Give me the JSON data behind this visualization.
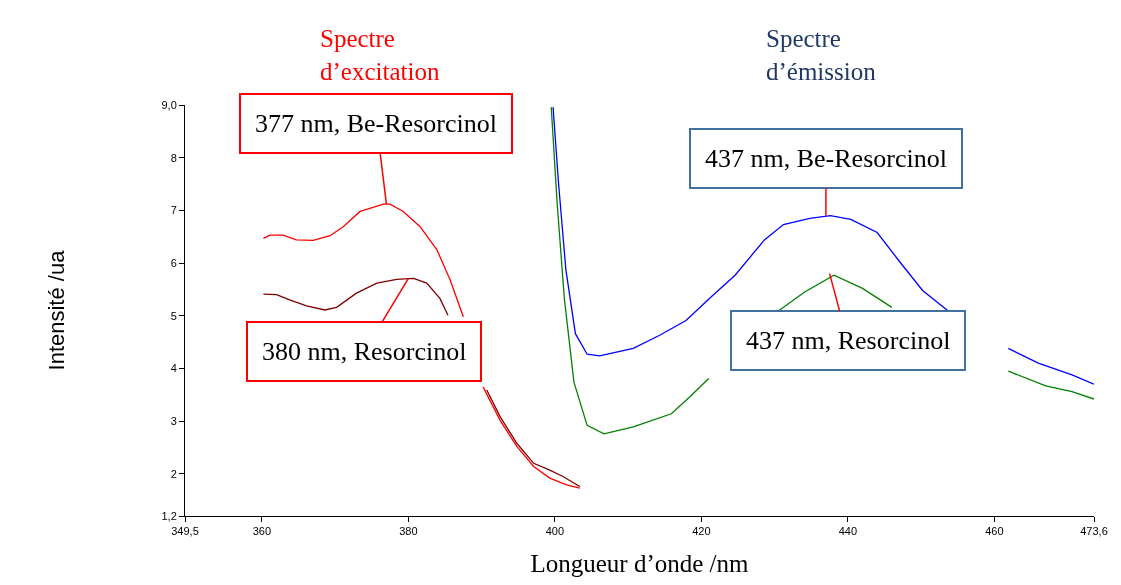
{
  "chart_data": {
    "type": "line",
    "xlabel": "Longueur d’onde /nm",
    "ylabel": "Intensité /ua",
    "xlim": [
      349.5,
      473.6
    ],
    "ylim": [
      1.2,
      9.0
    ],
    "xticks": [
      {
        "value": 349.5,
        "label": "349,5"
      },
      360,
      380,
      400,
      420,
      440,
      460,
      {
        "value": 473.6,
        "label": "473,6"
      }
    ],
    "yticks": [
      {
        "value": 1.2,
        "label": "1,2"
      },
      2,
      3,
      4,
      5,
      6,
      7,
      8,
      {
        "value": 9.0,
        "label": "9,0"
      }
    ],
    "marker": "none",
    "line_style": "solid",
    "series": [
      {
        "color": "#ff0000",
        "x": [
          360.2,
          361.1,
          362.9,
          364.7,
          367.0,
          369.3,
          371.1,
          373.4,
          376.6,
          377.5,
          379.3,
          381.6,
          383.9,
          385.7,
          387.5,
          389,
          390.2,
          392.5,
          394.8,
          397.1,
          399.3,
          401.6,
          403.4
        ],
        "values": [
          6.47,
          6.53,
          6.53,
          6.44,
          6.43,
          6.52,
          6.69,
          6.98,
          7.12,
          7.12,
          6.98,
          6.69,
          6.25,
          5.68,
          4.98,
          null,
          3.65,
          3.02,
          2.52,
          2.14,
          1.92,
          1.79,
          1.73
        ]
      },
      {
        "color": "#800000",
        "x": [
          360.2,
          362.0,
          363.8,
          366.1,
          368.6,
          370.2,
          372.9,
          375.7,
          378.4,
          380.7,
          382.5,
          384.3,
          385.4,
          388,
          390.7,
          392.5,
          394.8,
          397.1,
          399.3,
          401.1,
          403.4
        ],
        "values": [
          5.41,
          5.4,
          5.3,
          5.19,
          5.11,
          5.16,
          5.43,
          5.62,
          5.69,
          5.71,
          5.62,
          5.33,
          5.01,
          null,
          3.59,
          3.09,
          2.58,
          2.2,
          2.07,
          1.95,
          1.76
        ]
      },
      {
        "color": "#0000ff",
        "x": [
          399.75,
          400.5,
          401.5,
          402.8,
          404.4,
          406.1,
          410.7,
          414.3,
          417.9,
          421.5,
          424.6,
          428.6,
          431.2,
          434.8,
          437.6,
          440.4,
          444.0,
          447.1,
          450.2,
          453.7,
          458,
          461.9,
          466.0,
          470.6,
          473.6
        ],
        "values": [
          8.96,
          7.51,
          5.87,
          4.66,
          4.27,
          4.24,
          4.38,
          4.63,
          4.91,
          5.38,
          5.77,
          6.44,
          6.73,
          6.85,
          6.9,
          6.83,
          6.58,
          6.02,
          5.48,
          5.09,
          null,
          4.38,
          4.1,
          3.88,
          3.7
        ]
      },
      {
        "color": "#008000",
        "x": [
          399.5,
          400.3,
          401.3,
          402.6,
          404.4,
          406.7,
          410.7,
          415.9,
          418.4,
          421.0,
          426,
          430.5,
          434.1,
          438.1,
          442.0,
          446.0,
          454,
          461.9,
          467.0,
          470.6,
          473.6
        ],
        "values": [
          8.96,
          7.15,
          5.31,
          3.74,
          2.92,
          2.76,
          2.89,
          3.14,
          3.46,
          3.81,
          null,
          5.09,
          5.45,
          5.77,
          5.52,
          5.16,
          null,
          3.95,
          3.67,
          3.56,
          3.42
        ]
      }
    ],
    "annotations": [
      "Spectre\nd’excitation",
      "Spectre\nd’émission",
      {
        "text": "377 nm, Be-Resorcinol",
        "x": 377,
        "y": 7.12
      },
      {
        "text": "380 nm, Resorcinol",
        "x": 380,
        "y": 5.71
      },
      {
        "text": "437 nm, Be-Resorcinol",
        "x": 437,
        "y": 6.9
      },
      {
        "text": "437 nm, Resorcinol",
        "x": 437.5,
        "y": 5.8
      }
    ]
  }
}
